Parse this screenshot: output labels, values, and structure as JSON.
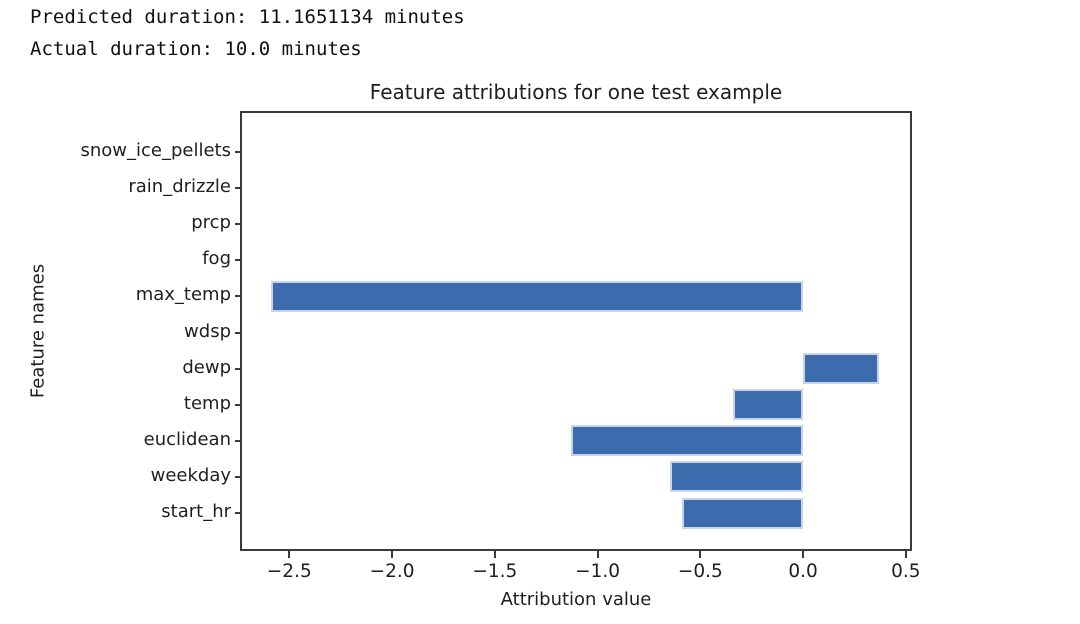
{
  "header": {
    "predicted_line": "Predicted duration: 11.1651134 minutes",
    "actual_line": "Actual duration: 10.0 minutes"
  },
  "chart_data": {
    "type": "bar",
    "orientation": "horizontal",
    "title": "Feature attributions for one test example",
    "xlabel": "Attribution value",
    "ylabel": "Feature names",
    "categories": [
      "snow_ice_pellets",
      "rain_drizzle",
      "prcp",
      "fog",
      "max_temp",
      "wdsp",
      "dewp",
      "temp",
      "euclidean",
      "weekday",
      "start_hr"
    ],
    "values": [
      0,
      0,
      0,
      0,
      -2.59,
      0,
      0.37,
      -0.34,
      -1.13,
      -0.65,
      -0.59
    ],
    "xlim": [
      -2.73,
      0.52
    ],
    "xticks": [
      -2.5,
      -2.0,
      -1.5,
      -1.0,
      -0.5,
      0.0,
      0.5
    ],
    "xtick_labels": [
      "−2.5",
      "−2.0",
      "−1.5",
      "−1.0",
      "−0.5",
      "0.0",
      "0.5"
    ],
    "grid": false,
    "legend": "none",
    "colors": {
      "bar_fill": "#3c6cad",
      "bar_edge": "#c6d5ea",
      "axis": "#3a3a3a",
      "text": "#1f1f1f"
    }
  }
}
